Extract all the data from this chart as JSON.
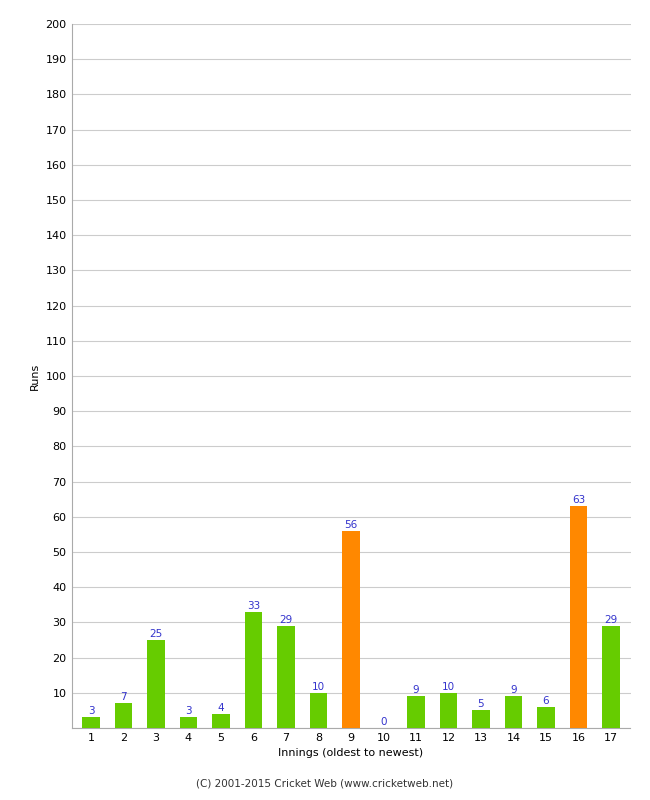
{
  "xlabel": "Innings (oldest to newest)",
  "ylabel": "Runs",
  "categories": [
    "1",
    "2",
    "3",
    "4",
    "5",
    "6",
    "7",
    "8",
    "9",
    "10",
    "11",
    "12",
    "13",
    "14",
    "15",
    "16",
    "17"
  ],
  "values": [
    3,
    7,
    25,
    3,
    4,
    33,
    29,
    10,
    56,
    0,
    9,
    10,
    5,
    9,
    6,
    63,
    29
  ],
  "colors": [
    "#66cc00",
    "#66cc00",
    "#66cc00",
    "#66cc00",
    "#66cc00",
    "#66cc00",
    "#66cc00",
    "#66cc00",
    "#ff8800",
    "#66cc00",
    "#66cc00",
    "#66cc00",
    "#66cc00",
    "#66cc00",
    "#66cc00",
    "#ff8800",
    "#66cc00"
  ],
  "ylim": [
    0,
    200
  ],
  "yticks": [
    0,
    10,
    20,
    30,
    40,
    50,
    60,
    70,
    80,
    90,
    100,
    110,
    120,
    130,
    140,
    150,
    160,
    170,
    180,
    190,
    200
  ],
  "label_color": "#3333cc",
  "background_color": "#ffffff",
  "grid_color": "#cccccc",
  "footer": "(C) 2001-2015 Cricket Web (www.cricketweb.net)",
  "bar_width": 0.55,
  "label_fontsize": 7.5,
  "tick_fontsize": 8,
  "axis_label_fontsize": 8,
  "footer_fontsize": 7.5
}
